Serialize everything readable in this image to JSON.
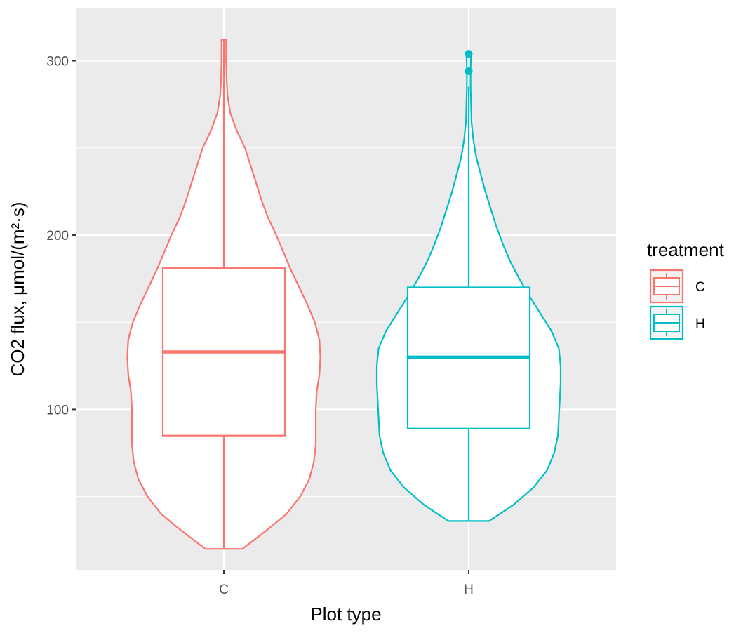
{
  "chart_data": {
    "type": "violin",
    "xlabel": "Plot type",
    "ylabel": "CO2 flux, μmol/(m²·s)",
    "categories": [
      "C",
      "H"
    ],
    "ylim": [
      8,
      330
    ],
    "yticks": [
      100,
      200,
      300
    ],
    "grid": true,
    "legend": {
      "title": "treatment",
      "position": "right",
      "entries": [
        {
          "label": "C",
          "color": "#F8766D"
        },
        {
          "label": "H",
          "color": "#00BFC4"
        }
      ]
    },
    "series": [
      {
        "name": "C",
        "color": "#F8766D",
        "box": {
          "min": 20,
          "q1": 85,
          "median": 133,
          "q3": 181,
          "max": 312
        },
        "outliers": [],
        "violin": [
          [
            20,
            0.2
          ],
          [
            30,
            0.45
          ],
          [
            40,
            0.68
          ],
          [
            50,
            0.83
          ],
          [
            60,
            0.93
          ],
          [
            70,
            0.98
          ],
          [
            80,
            1.0
          ],
          [
            90,
            1.0
          ],
          [
            100,
            1.0
          ],
          [
            110,
            1.01
          ],
          [
            120,
            1.04
          ],
          [
            130,
            1.05
          ],
          [
            140,
            1.04
          ],
          [
            150,
            0.99
          ],
          [
            160,
            0.91
          ],
          [
            170,
            0.82
          ],
          [
            180,
            0.73
          ],
          [
            190,
            0.65
          ],
          [
            200,
            0.57
          ],
          [
            210,
            0.48
          ],
          [
            220,
            0.41
          ],
          [
            230,
            0.35
          ],
          [
            240,
            0.29
          ],
          [
            250,
            0.23
          ],
          [
            260,
            0.14
          ],
          [
            270,
            0.07
          ],
          [
            280,
            0.04
          ],
          [
            290,
            0.03
          ],
          [
            300,
            0.025
          ],
          [
            312,
            0.025
          ]
        ]
      },
      {
        "name": "H",
        "color": "#00BFC4",
        "box": {
          "min": 36,
          "q1": 89,
          "median": 130,
          "q3": 170,
          "max": 285
        },
        "outliers": [
          294,
          304
        ],
        "violin": [
          [
            36,
            0.22
          ],
          [
            45,
            0.48
          ],
          [
            55,
            0.7
          ],
          [
            65,
            0.85
          ],
          [
            75,
            0.93
          ],
          [
            85,
            0.97
          ],
          [
            95,
            0.98
          ],
          [
            105,
            0.99
          ],
          [
            115,
            1.0
          ],
          [
            125,
            1.0
          ],
          [
            135,
            0.98
          ],
          [
            145,
            0.9
          ],
          [
            155,
            0.78
          ],
          [
            165,
            0.66
          ],
          [
            175,
            0.55
          ],
          [
            185,
            0.45
          ],
          [
            195,
            0.37
          ],
          [
            205,
            0.3
          ],
          [
            215,
            0.24
          ],
          [
            225,
            0.18
          ],
          [
            235,
            0.13
          ],
          [
            245,
            0.08
          ],
          [
            255,
            0.05
          ],
          [
            265,
            0.03
          ],
          [
            275,
            0.025
          ],
          [
            285,
            0.02
          ],
          [
            295,
            0.02
          ],
          [
            304,
            0.025
          ]
        ]
      }
    ]
  }
}
